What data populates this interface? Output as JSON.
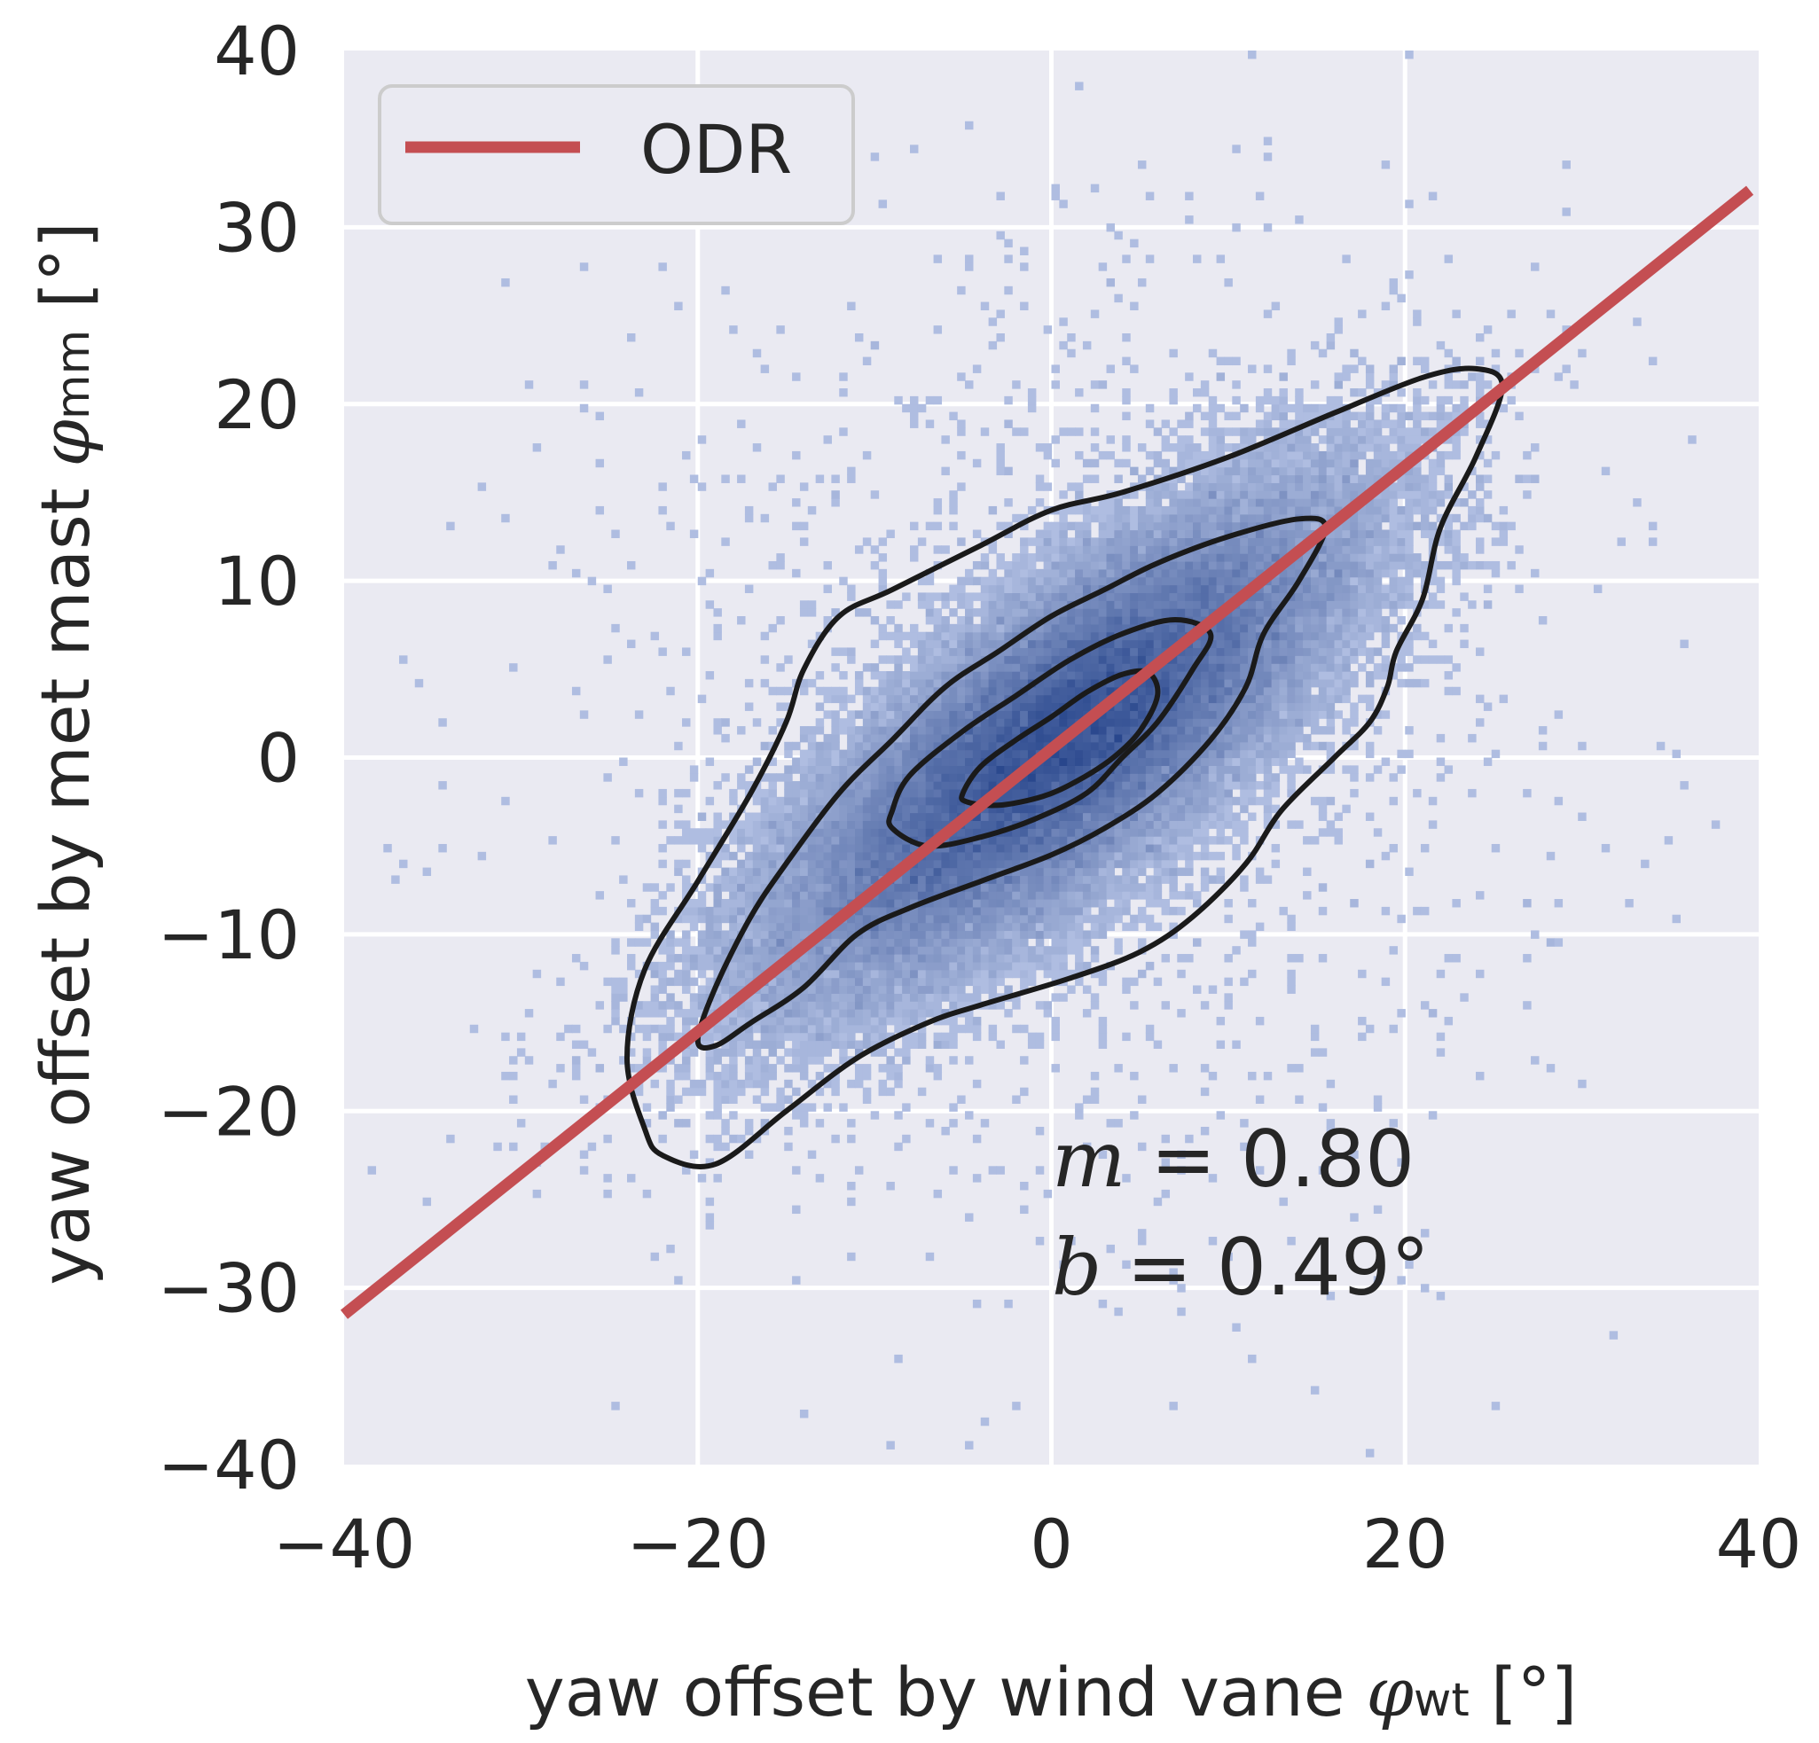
{
  "chart_data": {
    "type": "scatter",
    "title": "",
    "xlabel": "yaw offset by wind vane",
    "xlabel_symbol": "φ",
    "xlabel_sub": "wt",
    "xlabel_unit": "[°]",
    "ylabel": "yaw offset by met mast",
    "ylabel_symbol": "φ",
    "ylabel_sub": "mm",
    "ylabel_unit": "[°]",
    "xlim": [
      -40,
      40
    ],
    "ylim": [
      -40,
      40
    ],
    "xticks": [
      -40,
      -20,
      0,
      20,
      40
    ],
    "xtick_labels": [
      "−40",
      "−20",
      "0",
      "20",
      "40"
    ],
    "yticks": [
      40,
      30,
      20,
      10,
      0,
      -10,
      -20,
      -30,
      -40
    ],
    "ytick_labels": [
      "40",
      "30",
      "20",
      "10",
      "0",
      "−10",
      "−20",
      "−30",
      "−40"
    ],
    "grid": true,
    "legend": {
      "position": "top-left",
      "entries": [
        {
          "label": "ODR",
          "color": "#c44e52"
        }
      ]
    },
    "fit_line": {
      "name": "ODR",
      "slope": 0.8,
      "intercept": 0.49,
      "color": "#c44e52",
      "x_range": [
        -40,
        39.5
      ]
    },
    "annotations": [
      {
        "symbol": "m",
        "text": " = 0.80",
        "x": 0,
        "y": -23
      },
      {
        "symbol": "b",
        "text": " = 0.49°",
        "x": 0,
        "y": -29.5
      }
    ],
    "density": {
      "center": [
        0.5,
        0.9
      ],
      "sigma_major": 9.5,
      "sigma_minor": 3.4,
      "angle_deg": 39,
      "color": "#4c72b0"
    },
    "contours": [
      {
        "level": "outer",
        "points": [
          [
            -23,
            -21
          ],
          [
            -24,
            -17
          ],
          [
            -23,
            -12
          ],
          [
            -20,
            -7
          ],
          [
            -17,
            -2
          ],
          [
            -15,
            2
          ],
          [
            -14,
            5
          ],
          [
            -12,
            8
          ],
          [
            -9,
            9.5
          ],
          [
            -4,
            12
          ],
          [
            0,
            14
          ],
          [
            4,
            15
          ],
          [
            10,
            17
          ],
          [
            16,
            19.5
          ],
          [
            21,
            21.5
          ],
          [
            24,
            22
          ],
          [
            25.5,
            21
          ],
          [
            24,
            17
          ],
          [
            22,
            13
          ],
          [
            21,
            9
          ],
          [
            19.5,
            6
          ],
          [
            19,
            4
          ],
          [
            18,
            2
          ],
          [
            16,
            0
          ],
          [
            13,
            -3
          ],
          [
            11,
            -6
          ],
          [
            8,
            -9
          ],
          [
            5,
            -11
          ],
          [
            1,
            -12.5
          ],
          [
            -4,
            -14
          ],
          [
            -7,
            -15
          ],
          [
            -11,
            -17
          ],
          [
            -15,
            -20
          ],
          [
            -19,
            -23
          ],
          [
            -22,
            -22.5
          ]
        ]
      },
      {
        "level": "second",
        "points": [
          [
            -20,
            -16
          ],
          [
            -19,
            -13
          ],
          [
            -17,
            -9
          ],
          [
            -15,
            -6
          ],
          [
            -12,
            -2
          ],
          [
            -9,
            1
          ],
          [
            -6,
            4
          ],
          [
            -3,
            6
          ],
          [
            0,
            8
          ],
          [
            3,
            9.5
          ],
          [
            6,
            11
          ],
          [
            10,
            12.5
          ],
          [
            14,
            13.5
          ],
          [
            15.5,
            13
          ],
          [
            14,
            10
          ],
          [
            12,
            7
          ],
          [
            11,
            4
          ],
          [
            9,
            1
          ],
          [
            6,
            -2
          ],
          [
            3,
            -4
          ],
          [
            0,
            -5.5
          ],
          [
            -4,
            -7
          ],
          [
            -8,
            -8.5
          ],
          [
            -11,
            -10
          ],
          [
            -14,
            -13
          ],
          [
            -17,
            -15
          ],
          [
            -19,
            -16.3
          ]
        ]
      },
      {
        "level": "third",
        "points": [
          [
            -9,
            -4
          ],
          [
            -9,
            -3
          ],
          [
            -8,
            -1
          ],
          [
            -5,
            1.5
          ],
          [
            -2,
            3.5
          ],
          [
            1,
            5.5
          ],
          [
            4,
            7
          ],
          [
            7,
            7.8
          ],
          [
            9,
            7
          ],
          [
            8,
            5
          ],
          [
            6,
            2
          ],
          [
            4,
            0
          ],
          [
            2,
            -2
          ],
          [
            -1,
            -3.5
          ],
          [
            -4,
            -4.5
          ],
          [
            -7,
            -5
          ]
        ]
      },
      {
        "level": "inner",
        "points": [
          [
            -5,
            -2
          ],
          [
            -4,
            -0.5
          ],
          [
            -2,
            1
          ],
          [
            0,
            2.3
          ],
          [
            2,
            3.7
          ],
          [
            4,
            4.7
          ],
          [
            5.5,
            4.8
          ],
          [
            6,
            3.5
          ],
          [
            5,
            1.5
          ],
          [
            3.5,
            0
          ],
          [
            1.5,
            -1.3
          ],
          [
            -0.5,
            -2.2
          ],
          [
            -3,
            -2.7
          ],
          [
            -4.8,
            -2.5
          ]
        ]
      }
    ]
  }
}
